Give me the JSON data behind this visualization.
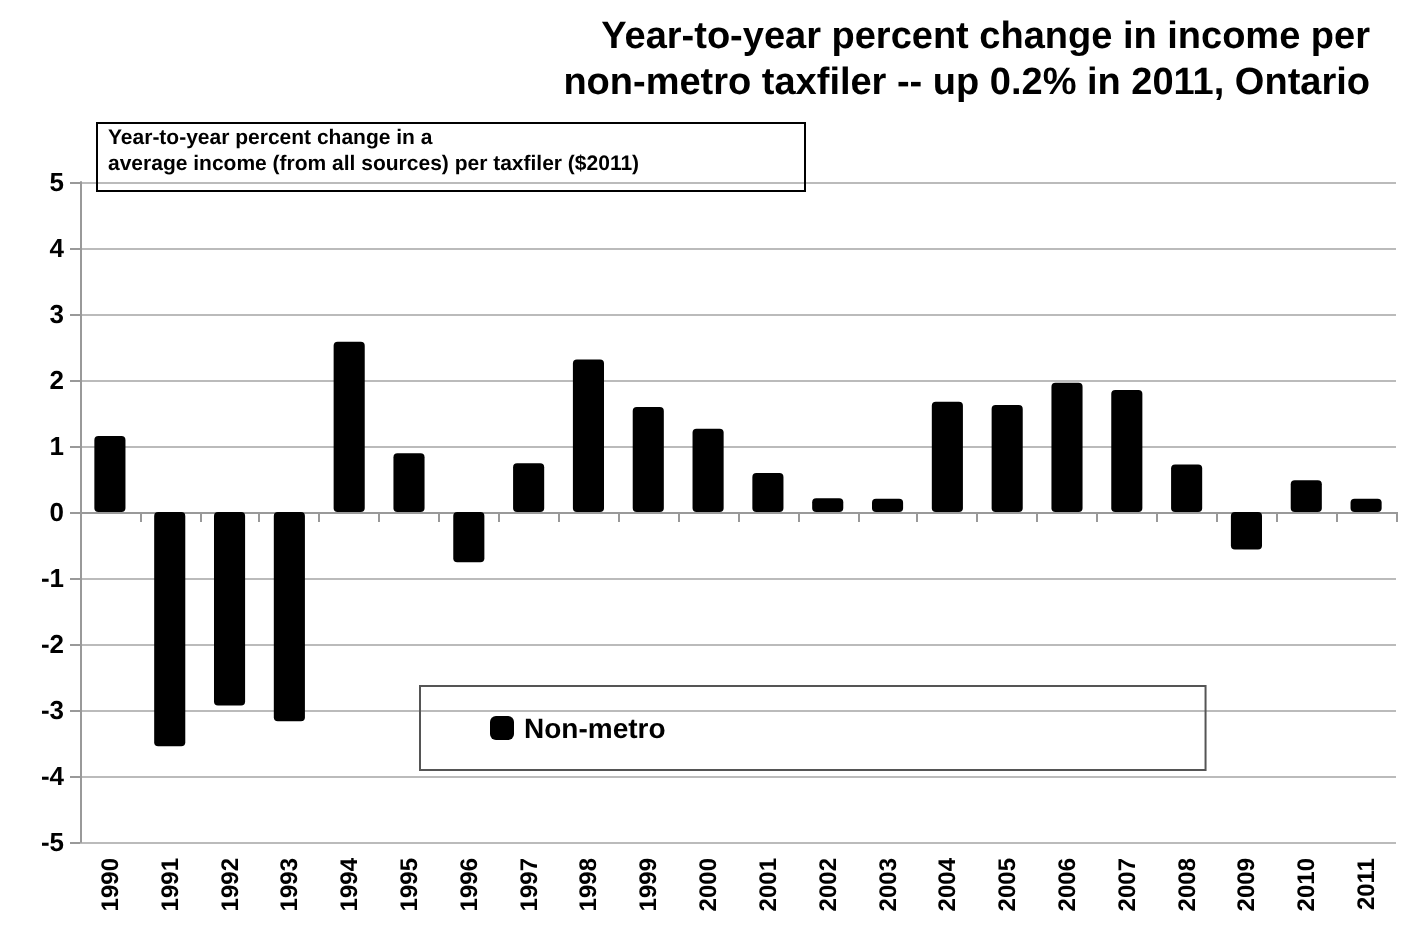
{
  "chart_data": {
    "type": "bar",
    "title": "Year-to-year percent change in income per\nnon-metro taxfiler -- up 0.2% in 2011, Ontario",
    "annotations": [
      "Year-to-year percent change in a\naverage income (from all sources) per taxfiler ($2011)"
    ],
    "categories": [
      "1990",
      "1991",
      "1992",
      "1993",
      "1994",
      "1995",
      "1996",
      "1997",
      "1998",
      "1999",
      "2000",
      "2001",
      "2002",
      "2003",
      "2004",
      "2005",
      "2006",
      "2007",
      "2008",
      "2009",
      "2010",
      "2011"
    ],
    "series": [
      {
        "name": "Non-metro",
        "color": "#000000",
        "values": [
          1.15,
          -3.55,
          -2.93,
          -3.17,
          2.58,
          0.89,
          -0.76,
          0.74,
          2.31,
          1.59,
          1.26,
          0.59,
          0.21,
          0.2,
          1.67,
          1.62,
          1.96,
          1.85,
          0.72,
          -0.57,
          0.48,
          0.2
        ]
      }
    ],
    "ylim": [
      -5,
      5
    ],
    "yticks": [
      -5,
      -4,
      -3,
      -2,
      -1,
      0,
      1,
      2,
      3,
      4,
      5
    ],
    "grid": "y",
    "legend": "bottom"
  }
}
